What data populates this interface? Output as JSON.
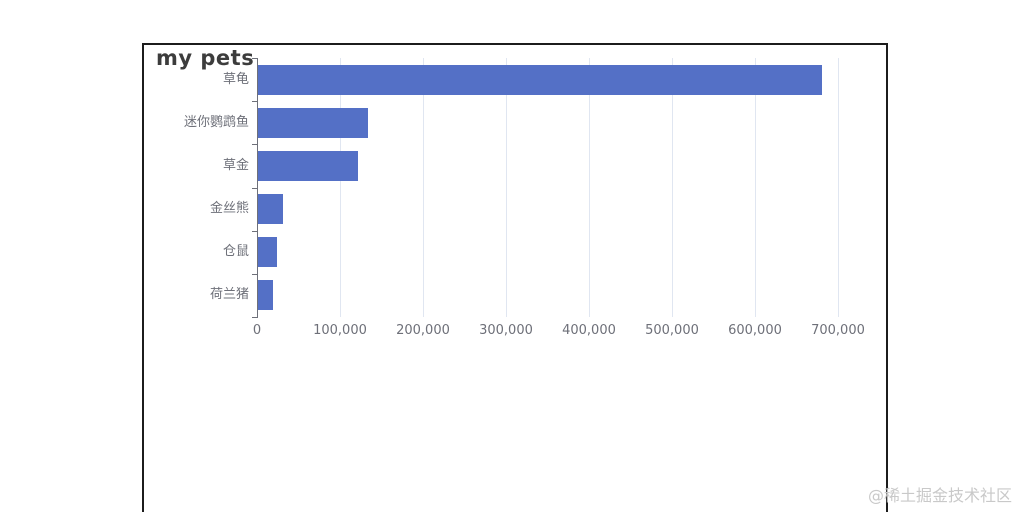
{
  "watermark": "@稀土掘金技术社区",
  "colors": {
    "bar": "#5470c6",
    "grid_line": "#e0e6f1",
    "axis_line": "#6e7079",
    "tick_label": "#6e7079",
    "category_label": "#6e7079",
    "title": "#3c3c3c",
    "frame_border": "#1c1c1c",
    "watermark": "#c9c9c9",
    "background": "#ffffff"
  },
  "chart_data": {
    "type": "bar",
    "orientation": "horizontal",
    "title": "my pets",
    "xlabel": "",
    "ylabel": "",
    "categories": [
      "草龟",
      "迷你鹦鹉鱼",
      "草金",
      "金丝熊",
      "仓鼠",
      "荷兰猪"
    ],
    "values": [
      680000,
      133000,
      120000,
      30000,
      23000,
      18000
    ],
    "xlim": [
      0,
      700000
    ],
    "x_ticks": [
      0,
      100000,
      200000,
      300000,
      400000,
      500000,
      600000,
      700000
    ],
    "x_tick_labels": [
      "0",
      "100,000",
      "200,000",
      "300,000",
      "400,000",
      "500,000",
      "600,000",
      "700,000"
    ],
    "grid": true,
    "legend": false,
    "axis_ticks_at_category_boundaries": true
  }
}
